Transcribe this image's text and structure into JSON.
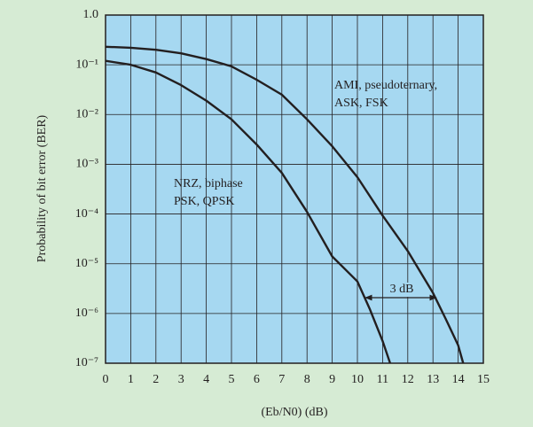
{
  "chart_data": {
    "type": "line",
    "y_label": "Probability of bit error (BER)",
    "x_label": "(Eb/N0) (dB)",
    "annotations": [
      "AMI, pseudoternary,",
      "ASK, FSK",
      "NRZ, biphase",
      "PSK, QPSK",
      "3 dB"
    ],
    "xlim": [
      0,
      15
    ],
    "xticks": [
      0,
      1,
      2,
      3,
      4,
      5,
      6,
      7,
      8,
      9,
      10,
      11,
      12,
      13,
      14,
      15
    ],
    "ylim": [
      1e-07,
      1
    ],
    "log_y": true,
    "grid": true,
    "yticks": [
      {
        "value": 1e-07,
        "label": "10⁻⁷"
      },
      {
        "value": 1e-06,
        "label": "10⁻⁶"
      },
      {
        "value": 1e-05,
        "label": "10⁻⁵"
      },
      {
        "value": 0.0001,
        "label": "10⁻⁴"
      },
      {
        "value": 0.001,
        "label": "10⁻³"
      },
      {
        "value": 0.01,
        "label": "10⁻²"
      },
      {
        "value": 0.1,
        "label": "10⁻¹"
      },
      {
        "value": 1,
        "label": "1.0"
      }
    ],
    "series": [
      {
        "color": "#231f20",
        "x": [
          0,
          1,
          2,
          3,
          4,
          5,
          6,
          7,
          8,
          9,
          10,
          10.5,
          11,
          11.3
        ],
        "values": [
          0.12,
          0.1,
          0.07,
          0.039,
          0.019,
          0.008,
          0.0025,
          0.00067,
          0.00011,
          1.4e-05,
          4.4e-06,
          1.2e-06,
          2.8e-07,
          1e-07
        ]
      },
      {
        "color": "#231f20",
        "x": [
          0,
          1,
          2,
          3,
          4,
          5,
          6,
          7,
          8,
          9,
          10,
          11,
          12,
          13,
          13.5,
          14,
          14.2
        ],
        "values": [
          0.23,
          0.22,
          0.2,
          0.17,
          0.13,
          0.093,
          0.05,
          0.025,
          0.008,
          0.0023,
          0.00055,
          9.3e-05,
          1.8e-05,
          2.6e-06,
          7.9e-07,
          2.3e-07,
          1e-07
        ]
      }
    ]
  }
}
